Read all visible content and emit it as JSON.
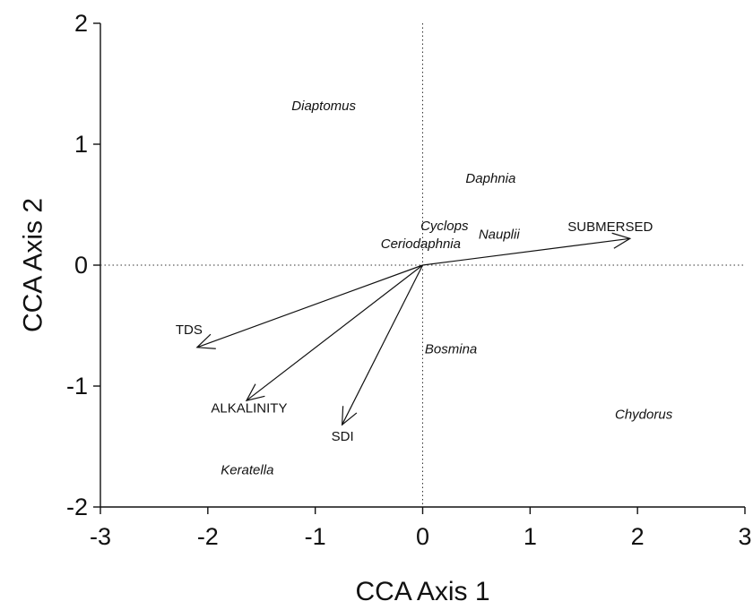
{
  "chart_data": {
    "type": "scatter",
    "title": "",
    "xlabel": "CCA Axis 1",
    "ylabel": "CCA Axis 2",
    "xlim": [
      -3,
      3
    ],
    "ylim": [
      -2,
      2
    ],
    "x_ticks": [
      -3,
      -2,
      -1,
      0,
      1,
      2,
      3
    ],
    "y_ticks": [
      -2,
      -1,
      0,
      1,
      2
    ],
    "reference_lines": {
      "x": 0,
      "y": 0,
      "style": "dotted"
    },
    "grid": false,
    "species": [
      {
        "label": "Diaptomus",
        "x": -1.22,
        "y": 1.28
      },
      {
        "label": "Daphnia",
        "x": 0.4,
        "y": 0.68
      },
      {
        "label": "Cyclops",
        "x": -0.02,
        "y": 0.29
      },
      {
        "label": "Nauplii",
        "x": 0.52,
        "y": 0.22
      },
      {
        "label": "Ceriodaphnia",
        "x": -0.39,
        "y": 0.14
      },
      {
        "label": "Bosmina",
        "x": 0.02,
        "y": -0.73
      },
      {
        "label": "Chydorus",
        "x": 1.79,
        "y": -1.27
      },
      {
        "label": "Keratella",
        "x": -1.88,
        "y": -1.73
      }
    ],
    "vectors": [
      {
        "label": "SUBMERSED",
        "x": 1.93,
        "y": 0.22,
        "label_x": 1.35,
        "label_y": 0.28
      },
      {
        "label": "TDS",
        "x": -2.1,
        "y": -0.68,
        "label_x": -2.3,
        "label_y": -0.57
      },
      {
        "label": "ALKALINITY",
        "x": -1.64,
        "y": -1.12,
        "label_x": -1.97,
        "label_y": -1.22
      },
      {
        "label": "SDI",
        "x": -0.75,
        "y": -1.32,
        "label_x": -0.85,
        "label_y": -1.45
      }
    ]
  }
}
